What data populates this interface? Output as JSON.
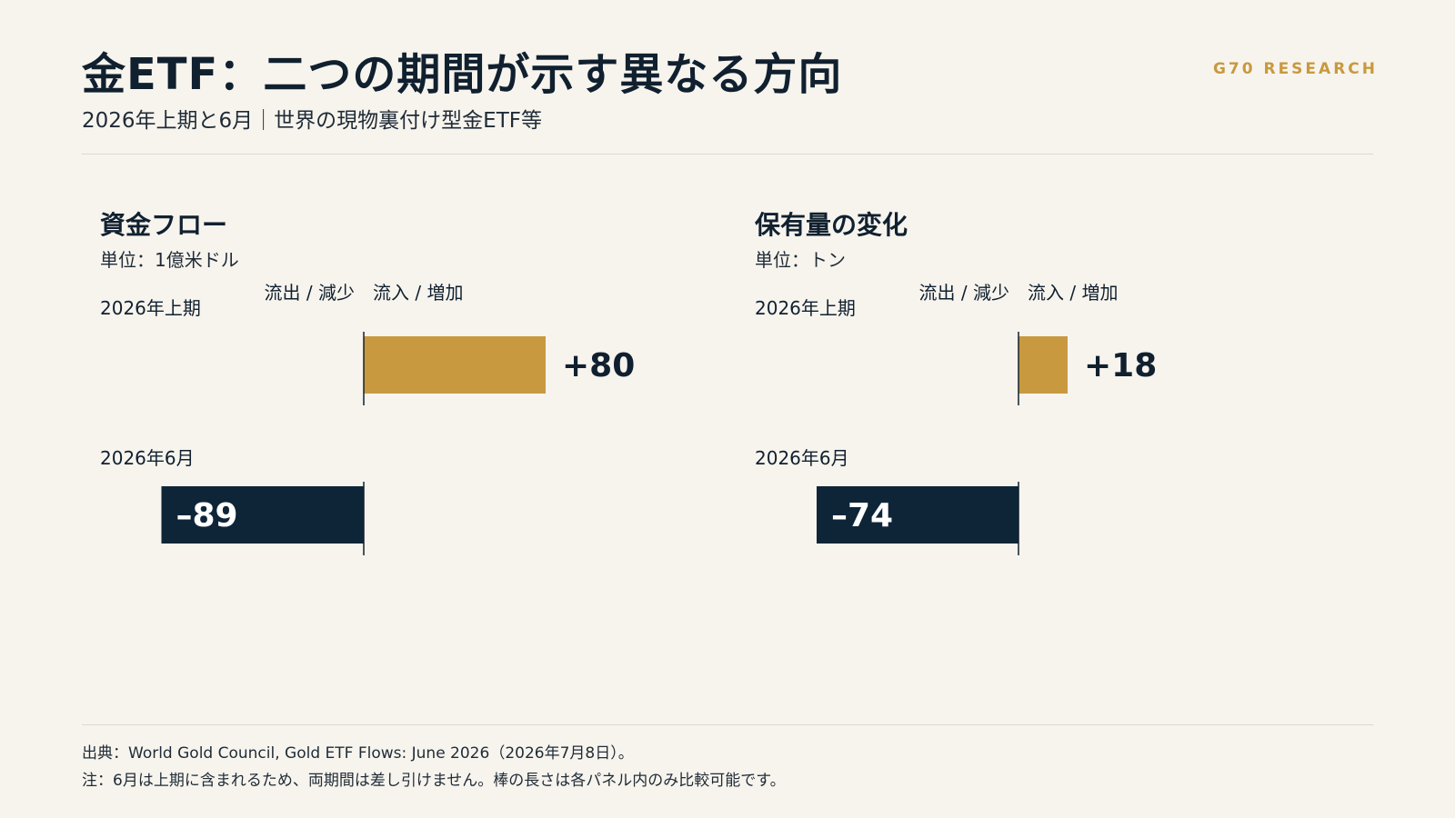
{
  "header": {
    "title": "金ETF：二つの期間が示す異なる方向",
    "subtitle": "2026年上期と6月｜世界の現物裏付け型金ETF等",
    "brand": "G70 RESEARCH"
  },
  "footer": {
    "source": "出典：World Gold Council, Gold ETF Flows: June 2026（2026年7月8日）。",
    "note": "注：6月は上期に含まれるため、両期間は差し引けません。棒の長さは各パネル内のみ比較可能です。"
  },
  "colors": {
    "positive": "#c8993e",
    "negative": "#0e2538",
    "background": "#f7f4ee",
    "text": "#10202f"
  },
  "chart_data": [
    {
      "type": "bar",
      "orientation": "horizontal-diverging",
      "title": "資金フロー",
      "unit": "単位：1億米ドル",
      "axis_labels": {
        "negative": "流出 / 減少",
        "positive": "流入 / 増加"
      },
      "categories": [
        "2026年上期",
        "2026年6月"
      ],
      "values": [
        80,
        -89
      ],
      "value_labels": [
        "+80",
        "–89"
      ]
    },
    {
      "type": "bar",
      "orientation": "horizontal-diverging",
      "title": "保有量の変化",
      "unit": "単位：トン",
      "axis_labels": {
        "negative": "流出 / 減少",
        "positive": "流入 / 増加"
      },
      "categories": [
        "2026年上期",
        "2026年6月"
      ],
      "values": [
        18,
        -74
      ],
      "value_labels": [
        "+18",
        "–74"
      ]
    }
  ]
}
